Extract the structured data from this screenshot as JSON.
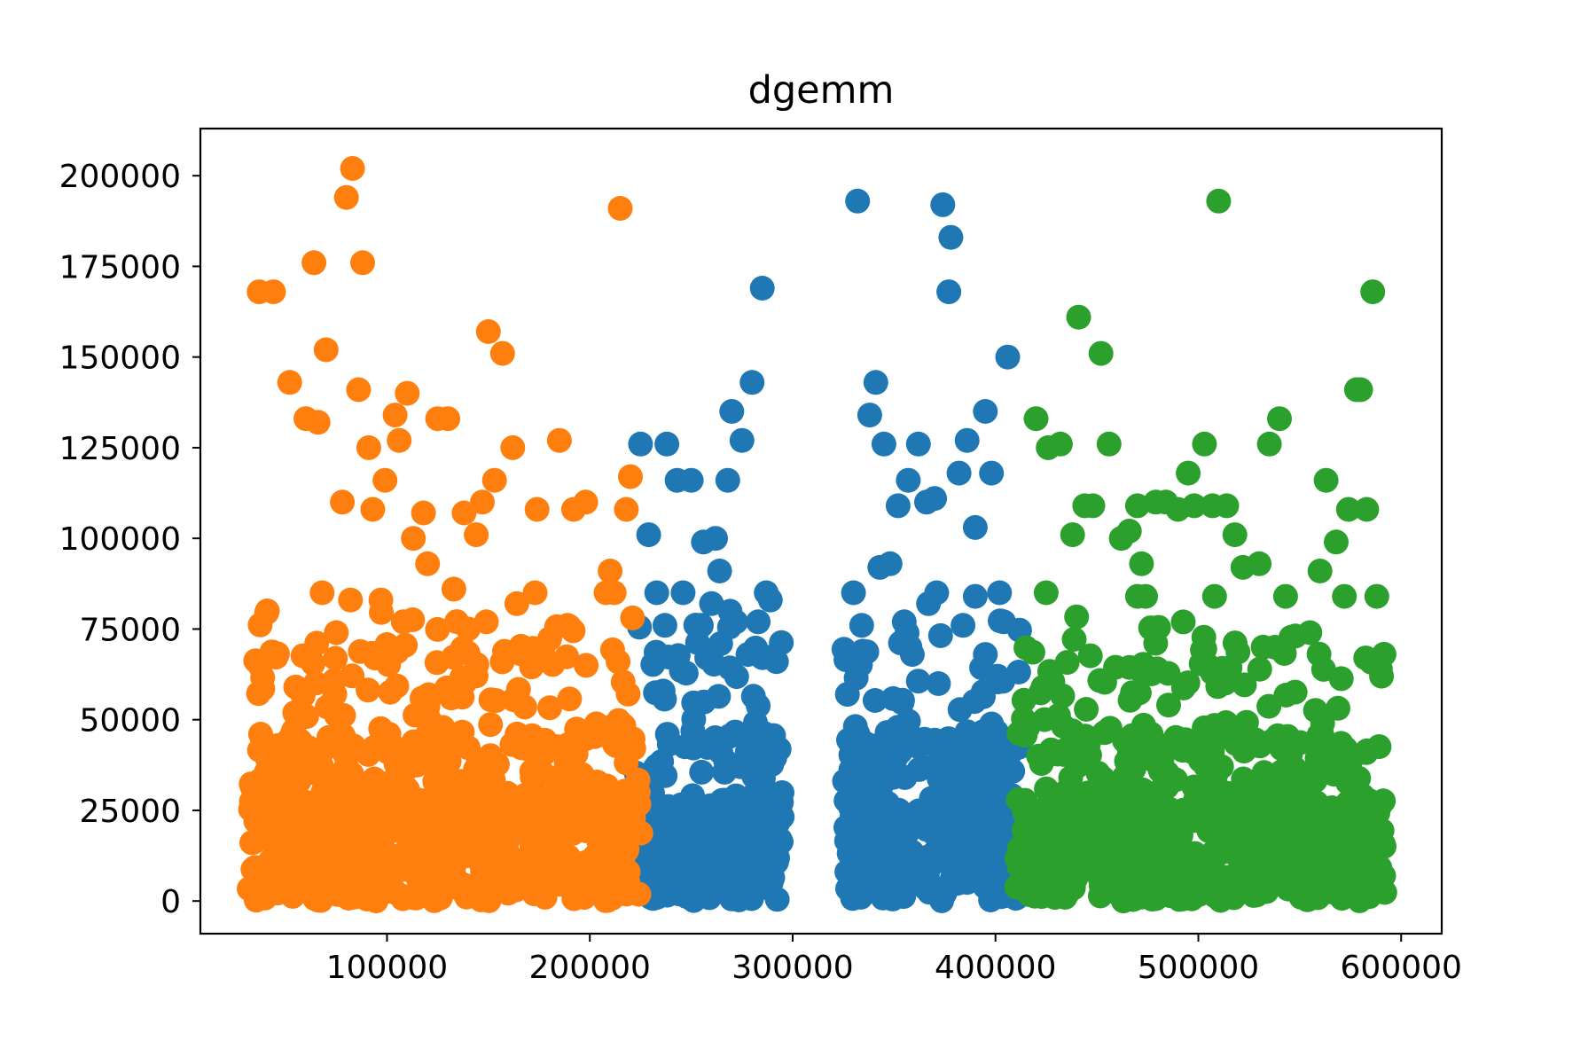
{
  "chart_data": {
    "type": "scatter",
    "title": "dgemm",
    "xlabel": "",
    "ylabel": "",
    "xlim": [
      8000,
      620000
    ],
    "ylim": [
      -9000,
      213000
    ],
    "xticks": [
      100000,
      200000,
      300000,
      400000,
      500000,
      600000
    ],
    "xtick_labels": [
      "100000",
      "200000",
      "300000",
      "400000",
      "500000",
      "600000"
    ],
    "yticks": [
      0,
      25000,
      50000,
      75000,
      100000,
      125000,
      150000,
      175000,
      200000
    ],
    "ytick_labels": [
      "0",
      "25000",
      "50000",
      "75000",
      "100000",
      "125000",
      "150000",
      "175000",
      "200000"
    ],
    "grid": false,
    "legend": "none",
    "series": [
      {
        "color": "#1f77b4",
        "x": [
          225000,
          238000,
          243000,
          250000,
          256000,
          262000,
          268000,
          270000,
          275000,
          280000,
          285000,
          289000,
          332000,
          338000,
          341000,
          345000,
          352000,
          357000,
          362000,
          366000,
          370000,
          374000,
          378000,
          382000,
          386000,
          390000,
          395000,
          398000,
          402000,
          406000,
          229000,
          233000,
          237000,
          246000,
          255000,
          260000,
          264000,
          272000,
          278000,
          283000,
          287000,
          292000,
          330000,
          334000,
          343000,
          348000,
          355000,
          359000,
          367000,
          371000,
          377000,
          384000,
          390000,
          395000,
          401000,
          404000
        ],
        "y": [
          126000,
          126000,
          116000,
          116000,
          99000,
          100000,
          116000,
          135000,
          127000,
          143000,
          169000,
          83000,
          193000,
          134000,
          143000,
          126000,
          109000,
          116000,
          126000,
          110000,
          111000,
          192000,
          183000,
          118000,
          127000,
          103000,
          135000,
          118000,
          85000,
          150000,
          101000,
          85000,
          76000,
          85000,
          76000,
          82000,
          91000,
          77000,
          68000,
          77000,
          85000,
          66000,
          85000,
          76000,
          92000,
          93000,
          77000,
          68000,
          82000,
          85000,
          168000,
          76000,
          84000,
          68000,
          62000,
          77000
        ]
      },
      {
        "color": "#ff7f0e",
        "x": [
          37000,
          44000,
          52000,
          60000,
          64000,
          66000,
          70000,
          78000,
          80000,
          83000,
          86000,
          88000,
          91000,
          93000,
          99000,
          104000,
          106000,
          110000,
          118000,
          125000,
          130000,
          138000,
          144000,
          147000,
          150000,
          153000,
          157000,
          162000,
          174000,
          185000,
          192000,
          198000,
          210000,
          212000,
          215000,
          218000,
          220000,
          55000,
          68000,
          75000,
          82000,
          97000,
          108000,
          113000,
          120000,
          133000,
          140000,
          149000,
          164000,
          173000,
          189000,
          208000,
          41000
        ],
        "y": [
          168000,
          168000,
          143000,
          133000,
          176000,
          132000,
          152000,
          110000,
          194000,
          202000,
          141000,
          176000,
          125000,
          108000,
          116000,
          134000,
          127000,
          140000,
          107000,
          133000,
          133000,
          107000,
          101000,
          110000,
          157000,
          116000,
          151000,
          125000,
          108000,
          127000,
          108000,
          110000,
          91000,
          85000,
          191000,
          108000,
          117000,
          59000,
          85000,
          74000,
          83000,
          83000,
          77000,
          100000,
          93000,
          86000,
          75000,
          77000,
          82000,
          85000,
          76000,
          85000,
          80000
        ]
      },
      {
        "color": "#2ca02c",
        "x": [
          420000,
          426000,
          432000,
          438000,
          441000,
          444000,
          448000,
          452000,
          456000,
          462000,
          466000,
          470000,
          474000,
          479000,
          484000,
          490000,
          495000,
          498000,
          503000,
          507000,
          510000,
          514000,
          518000,
          530000,
          535000,
          540000,
          560000,
          563000,
          568000,
          572000,
          574000,
          578000,
          580000,
          583000,
          586000,
          588000,
          508000,
          543000,
          425000,
          472000,
          522000,
          555000,
          470000
        ],
        "y": [
          133000,
          125000,
          126000,
          101000,
          161000,
          109000,
          109000,
          151000,
          126000,
          100000,
          102000,
          109000,
          84000,
          110000,
          110000,
          108000,
          118000,
          109000,
          126000,
          109000,
          193000,
          109000,
          101000,
          93000,
          126000,
          133000,
          91000,
          116000,
          99000,
          84000,
          108000,
          141000,
          141000,
          108000,
          168000,
          84000,
          84000,
          84000,
          85000,
          93000,
          92000,
          74000,
          84000
        ]
      }
    ]
  }
}
